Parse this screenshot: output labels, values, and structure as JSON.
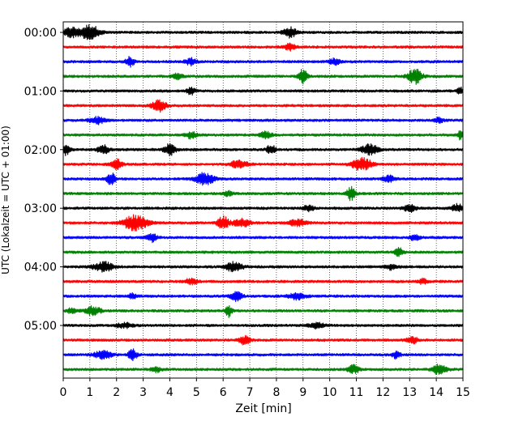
{
  "chart_data": {
    "type": "line",
    "title": "",
    "xlabel": "Zeit  [min]",
    "ylabel": "UTC (Lokalzeit = UTC + 01:00)",
    "xlim": [
      0,
      15
    ],
    "x_ticks": [
      0,
      1,
      2,
      3,
      4,
      5,
      6,
      7,
      8,
      9,
      10,
      11,
      12,
      13,
      14,
      15
    ],
    "y_ticks": [
      "00:00",
      "01:00",
      "02:00",
      "03:00",
      "04:00",
      "05:00"
    ],
    "trace_interval_min": 15,
    "grid": "vertical-dotted",
    "legend": "none",
    "colors": [
      "#000000",
      "#ff0000",
      "#0000ff",
      "#008000"
    ],
    "traces": [
      {
        "start": "00:00",
        "color": "#000000",
        "events": [
          {
            "t": 0.3,
            "amp": 6,
            "width": 0.25
          },
          {
            "t": 1.0,
            "amp": 9,
            "width": 0.35
          },
          {
            "t": 8.5,
            "amp": 6,
            "width": 0.25
          }
        ]
      },
      {
        "start": "00:15",
        "color": "#ff0000",
        "events": [
          {
            "t": 8.5,
            "amp": 4,
            "width": 0.2
          }
        ]
      },
      {
        "start": "00:30",
        "color": "#0000ff",
        "events": [
          {
            "t": 2.5,
            "amp": 6,
            "width": 0.15
          },
          {
            "t": 4.8,
            "amp": 4,
            "width": 0.2
          },
          {
            "t": 10.2,
            "amp": 4,
            "width": 0.2
          }
        ]
      },
      {
        "start": "00:45",
        "color": "#008000",
        "events": [
          {
            "t": 9.0,
            "amp": 9,
            "width": 0.15
          },
          {
            "t": 13.2,
            "amp": 9,
            "width": 0.25
          },
          {
            "t": 4.3,
            "amp": 3,
            "width": 0.2
          }
        ]
      },
      {
        "start": "01:00",
        "color": "#000000",
        "events": [
          {
            "t": 4.8,
            "amp": 4,
            "width": 0.15
          },
          {
            "t": 14.9,
            "amp": 5,
            "width": 0.1
          }
        ]
      },
      {
        "start": "01:15",
        "color": "#ff0000",
        "events": [
          {
            "t": 3.6,
            "amp": 7,
            "width": 0.25
          }
        ]
      },
      {
        "start": "01:30",
        "color": "#0000ff",
        "events": [
          {
            "t": 1.3,
            "amp": 4,
            "width": 0.3
          },
          {
            "t": 14.1,
            "amp": 3,
            "width": 0.15
          }
        ]
      },
      {
        "start": "01:45",
        "color": "#008000",
        "events": [
          {
            "t": 4.8,
            "amp": 4,
            "width": 0.2
          },
          {
            "t": 7.6,
            "amp": 4,
            "width": 0.2
          },
          {
            "t": 14.9,
            "amp": 5,
            "width": 0.1
          }
        ]
      },
      {
        "start": "02:00",
        "color": "#000000",
        "events": [
          {
            "t": 0.1,
            "amp": 6,
            "width": 0.15
          },
          {
            "t": 1.5,
            "amp": 6,
            "width": 0.2
          },
          {
            "t": 4.0,
            "amp": 7,
            "width": 0.2
          },
          {
            "t": 7.8,
            "amp": 6,
            "width": 0.15
          },
          {
            "t": 11.5,
            "amp": 6,
            "width": 0.3
          }
        ]
      },
      {
        "start": "02:15",
        "color": "#ff0000",
        "events": [
          {
            "t": 2.0,
            "amp": 6,
            "width": 0.2
          },
          {
            "t": 6.6,
            "amp": 5,
            "width": 0.3
          },
          {
            "t": 11.2,
            "amp": 8,
            "width": 0.35
          }
        ]
      },
      {
        "start": "02:30",
        "color": "#0000ff",
        "events": [
          {
            "t": 1.8,
            "amp": 8,
            "width": 0.15
          },
          {
            "t": 5.3,
            "amp": 7,
            "width": 0.35
          },
          {
            "t": 12.2,
            "amp": 4,
            "width": 0.2
          }
        ]
      },
      {
        "start": "02:45",
        "color": "#008000",
        "events": [
          {
            "t": 10.8,
            "amp": 8,
            "width": 0.15
          },
          {
            "t": 6.2,
            "amp": 3,
            "width": 0.15
          }
        ]
      },
      {
        "start": "03:00",
        "color": "#000000",
        "events": [
          {
            "t": 13.0,
            "amp": 5,
            "width": 0.2
          },
          {
            "t": 14.8,
            "amp": 5,
            "width": 0.2
          },
          {
            "t": 9.2,
            "amp": 3,
            "width": 0.2
          }
        ]
      },
      {
        "start": "03:15",
        "color": "#ff0000",
        "events": [
          {
            "t": 2.7,
            "amp": 9,
            "width": 0.45
          },
          {
            "t": 6.0,
            "amp": 8,
            "width": 0.2
          },
          {
            "t": 6.7,
            "amp": 5,
            "width": 0.3
          },
          {
            "t": 8.8,
            "amp": 4,
            "width": 0.3
          }
        ]
      },
      {
        "start": "03:30",
        "color": "#0000ff",
        "events": [
          {
            "t": 3.3,
            "amp": 5,
            "width": 0.2
          },
          {
            "t": 13.2,
            "amp": 3,
            "width": 0.2
          }
        ]
      },
      {
        "start": "03:45",
        "color": "#008000",
        "events": [
          {
            "t": 12.6,
            "amp": 5,
            "width": 0.15
          }
        ]
      },
      {
        "start": "04:00",
        "color": "#000000",
        "events": [
          {
            "t": 1.5,
            "amp": 6,
            "width": 0.35
          },
          {
            "t": 6.4,
            "amp": 6,
            "width": 0.3
          },
          {
            "t": 12.3,
            "amp": 3,
            "width": 0.2
          }
        ]
      },
      {
        "start": "04:15",
        "color": "#ff0000",
        "events": [
          {
            "t": 4.8,
            "amp": 4,
            "width": 0.2
          },
          {
            "t": 13.5,
            "amp": 3,
            "width": 0.15
          }
        ]
      },
      {
        "start": "04:30",
        "color": "#0000ff",
        "events": [
          {
            "t": 6.5,
            "amp": 6,
            "width": 0.2
          },
          {
            "t": 8.8,
            "amp": 4,
            "width": 0.3
          },
          {
            "t": 2.6,
            "amp": 3,
            "width": 0.15
          }
        ]
      },
      {
        "start": "04:45",
        "color": "#008000",
        "events": [
          {
            "t": 1.1,
            "amp": 5,
            "width": 0.3
          },
          {
            "t": 6.2,
            "amp": 7,
            "width": 0.12
          },
          {
            "t": 0.3,
            "amp": 3,
            "width": 0.15
          }
        ]
      },
      {
        "start": "05:00",
        "color": "#000000",
        "events": [
          {
            "t": 2.3,
            "amp": 3,
            "width": 0.3
          },
          {
            "t": 9.5,
            "amp": 3,
            "width": 0.3
          }
        ]
      },
      {
        "start": "05:15",
        "color": "#ff0000",
        "events": [
          {
            "t": 6.8,
            "amp": 5,
            "width": 0.2
          },
          {
            "t": 13.1,
            "amp": 4,
            "width": 0.2
          }
        ]
      },
      {
        "start": "05:30",
        "color": "#0000ff",
        "events": [
          {
            "t": 1.5,
            "amp": 5,
            "width": 0.3
          },
          {
            "t": 2.6,
            "amp": 7,
            "width": 0.15
          },
          {
            "t": 12.5,
            "amp": 4,
            "width": 0.15
          }
        ]
      },
      {
        "start": "05:45",
        "color": "#008000",
        "events": [
          {
            "t": 10.9,
            "amp": 5,
            "width": 0.2
          },
          {
            "t": 14.1,
            "amp": 6,
            "width": 0.25
          },
          {
            "t": 3.5,
            "amp": 3,
            "width": 0.2
          }
        ]
      }
    ]
  }
}
